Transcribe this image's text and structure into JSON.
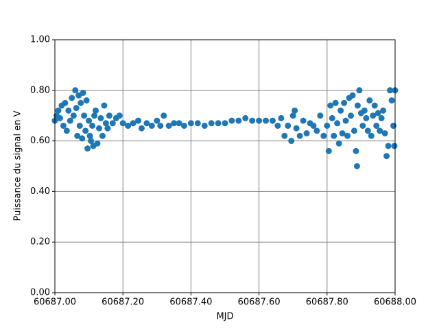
{
  "chart_data": {
    "type": "scatter",
    "xlabel": "MJD",
    "ylabel": "Puissance du signal en V",
    "color": "#1f77b4",
    "grid": true,
    "grid_color": "#808080",
    "xlim": [
      60687.0,
      60688.0
    ],
    "xticks": [
      {
        "value": 60687.0,
        "label": "60687.00"
      },
      {
        "value": 60687.2,
        "label": "60687.20"
      },
      {
        "value": 60687.4,
        "label": "60687.40"
      },
      {
        "value": 60687.6,
        "label": "60687.60"
      },
      {
        "value": 60687.8,
        "label": "60687.80"
      },
      {
        "value": 60688.0,
        "label": "60688.00"
      }
    ],
    "ylim": [
      0,
      1
    ],
    "yticks": [
      {
        "value": 0,
        "label": "0.00"
      },
      {
        "value": 0.2,
        "label": "0.20"
      },
      {
        "value": 0.4,
        "label": "0.40"
      },
      {
        "value": 0.6,
        "label": "0.60"
      },
      {
        "value": 0.8,
        "label": "0.80"
      },
      {
        "value": 1,
        "label": "1.00"
      }
    ],
    "x": [
      60687.0,
      60687.005,
      60687.01,
      60687.015,
      60687.02,
      60687.025,
      60687.03,
      60687.035,
      60687.04,
      60687.045,
      60687.05,
      60687.055,
      60687.06,
      60687.063,
      60687.066,
      60687.07,
      60687.073,
      60687.076,
      60687.08,
      60687.083,
      60687.086,
      60687.09,
      60687.093,
      60687.096,
      60687.1,
      60687.103,
      60687.106,
      60687.11,
      60687.113,
      60687.116,
      60687.12,
      60687.125,
      60687.13,
      60687.135,
      60687.14,
      60687.145,
      60687.15,
      60687.155,
      60687.16,
      60687.17,
      60687.18,
      60687.19,
      60687.2,
      60687.215,
      60687.23,
      60687.245,
      60687.255,
      60687.27,
      60687.285,
      60687.3,
      60687.31,
      60687.32,
      60687.335,
      60687.35,
      60687.365,
      60687.38,
      60687.4,
      60687.42,
      60687.44,
      60687.46,
      60687.48,
      60687.5,
      60687.52,
      60687.54,
      60687.56,
      60687.58,
      60687.6,
      60687.62,
      60687.64,
      60687.655,
      60687.665,
      60687.675,
      60687.685,
      60687.695,
      60687.7,
      60687.705,
      60687.71,
      60687.72,
      60687.73,
      60687.74,
      60687.75,
      60687.76,
      60687.77,
      60687.78,
      60687.79,
      60687.8,
      60687.805,
      60687.81,
      60687.815,
      60687.82,
      60687.825,
      60687.83,
      60687.835,
      60687.84,
      60687.845,
      60687.85,
      60687.855,
      60687.86,
      60687.865,
      60687.87,
      60687.875,
      60687.88,
      60687.885,
      60687.888,
      60687.89,
      60687.895,
      60687.9,
      60687.905,
      60687.91,
      60687.915,
      60687.92,
      60687.925,
      60687.93,
      60687.935,
      60687.94,
      60687.945,
      60687.95,
      60687.955,
      60687.96,
      60687.965,
      60687.97,
      60687.975,
      60687.98,
      60687.985,
      60687.99,
      60687.995,
      60688.0,
      60687.998
    ],
    "values": [
      0.68,
      0.7,
      0.72,
      0.69,
      0.74,
      0.66,
      0.75,
      0.64,
      0.72,
      0.68,
      0.77,
      0.7,
      0.8,
      0.73,
      0.62,
      0.78,
      0.66,
      0.75,
      0.61,
      0.79,
      0.7,
      0.64,
      0.76,
      0.57,
      0.68,
      0.62,
      0.6,
      0.66,
      0.58,
      0.7,
      0.72,
      0.59,
      0.65,
      0.69,
      0.62,
      0.74,
      0.67,
      0.65,
      0.7,
      0.67,
      0.69,
      0.7,
      0.67,
      0.66,
      0.67,
      0.68,
      0.65,
      0.67,
      0.66,
      0.68,
      0.66,
      0.7,
      0.66,
      0.67,
      0.67,
      0.66,
      0.67,
      0.67,
      0.66,
      0.67,
      0.67,
      0.67,
      0.68,
      0.68,
      0.69,
      0.68,
      0.68,
      0.68,
      0.68,
      0.66,
      0.69,
      0.62,
      0.66,
      0.6,
      0.7,
      0.72,
      0.65,
      0.62,
      0.68,
      0.63,
      0.67,
      0.66,
      0.64,
      0.7,
      0.62,
      0.66,
      0.56,
      0.74,
      0.69,
      0.62,
      0.75,
      0.67,
      0.59,
      0.72,
      0.63,
      0.75,
      0.68,
      0.62,
      0.77,
      0.7,
      0.78,
      0.64,
      0.56,
      0.5,
      0.74,
      0.8,
      0.71,
      0.66,
      0.72,
      0.69,
      0.64,
      0.76,
      0.62,
      0.7,
      0.74,
      0.66,
      0.71,
      0.64,
      0.69,
      0.72,
      0.63,
      0.54,
      0.58,
      0.8,
      0.76,
      0.66,
      0.8,
      0.58
    ]
  }
}
